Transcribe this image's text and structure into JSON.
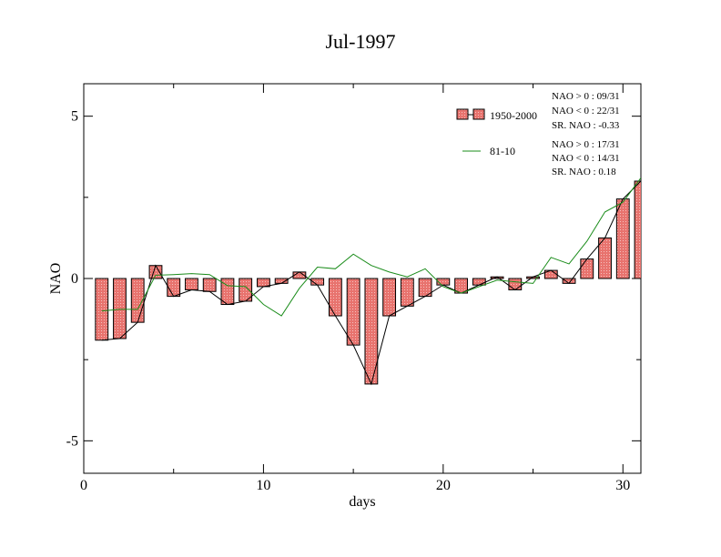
{
  "chart_data": {
    "type": "bar",
    "title": "Jul-1997",
    "xlabel": "days",
    "ylabel": "NAO",
    "xlim": [
      0,
      31
    ],
    "ylim": [
      -6,
      6
    ],
    "x_ticks": [
      0,
      10,
      20,
      30
    ],
    "x_tick_labels": [
      "0",
      "10",
      "20",
      "30"
    ],
    "y_ticks": [
      -5,
      0,
      5
    ],
    "y_tick_labels": [
      "-5",
      "0",
      "5"
    ],
    "x": [
      1,
      2,
      3,
      4,
      5,
      6,
      7,
      8,
      9,
      10,
      11,
      12,
      13,
      14,
      15,
      16,
      17,
      18,
      19,
      20,
      21,
      22,
      23,
      24,
      25,
      26,
      27,
      28,
      29,
      30,
      31
    ],
    "series": [
      {
        "name": "1950-2000",
        "kind": "bar",
        "color": "#e8736e",
        "values": [
          -1.9,
          -1.85,
          -1.35,
          0.4,
          -0.55,
          -0.35,
          -0.4,
          -0.8,
          -0.7,
          -0.25,
          -0.15,
          0.2,
          -0.2,
          -1.15,
          -2.05,
          -3.25,
          -1.15,
          -0.85,
          -0.55,
          -0.2,
          -0.45,
          -0.2,
          0.05,
          -0.35,
          0.05,
          0.25,
          -0.15,
          0.6,
          1.25,
          2.45,
          3.0
        ]
      },
      {
        "name": "81-10",
        "kind": "line",
        "color": "#1a8c1a",
        "values": [
          -1.0,
          -0.95,
          -0.95,
          0.1,
          0.12,
          0.15,
          0.12,
          -0.22,
          -0.25,
          -0.8,
          -1.15,
          -0.3,
          0.35,
          0.3,
          0.75,
          0.4,
          0.2,
          0.05,
          0.3,
          -0.25,
          -0.45,
          -0.25,
          -0.05,
          -0.1,
          -0.15,
          0.65,
          0.45,
          1.15,
          2.05,
          2.35,
          3.1
        ]
      }
    ],
    "bar_outline_line_color": "#000000",
    "legend_position": "top-right",
    "legend": [
      "1950-2000",
      "81-10"
    ],
    "stats_1950_2000": [
      "NAO > 0 : 09/31",
      "NAO < 0 : 22/31",
      "SR. NAO : -0.33"
    ],
    "stats_81_10": [
      "NAO > 0 : 17/31",
      "NAO < 0 : 14/31",
      "SR. NAO :  0.18"
    ],
    "grid": false
  }
}
